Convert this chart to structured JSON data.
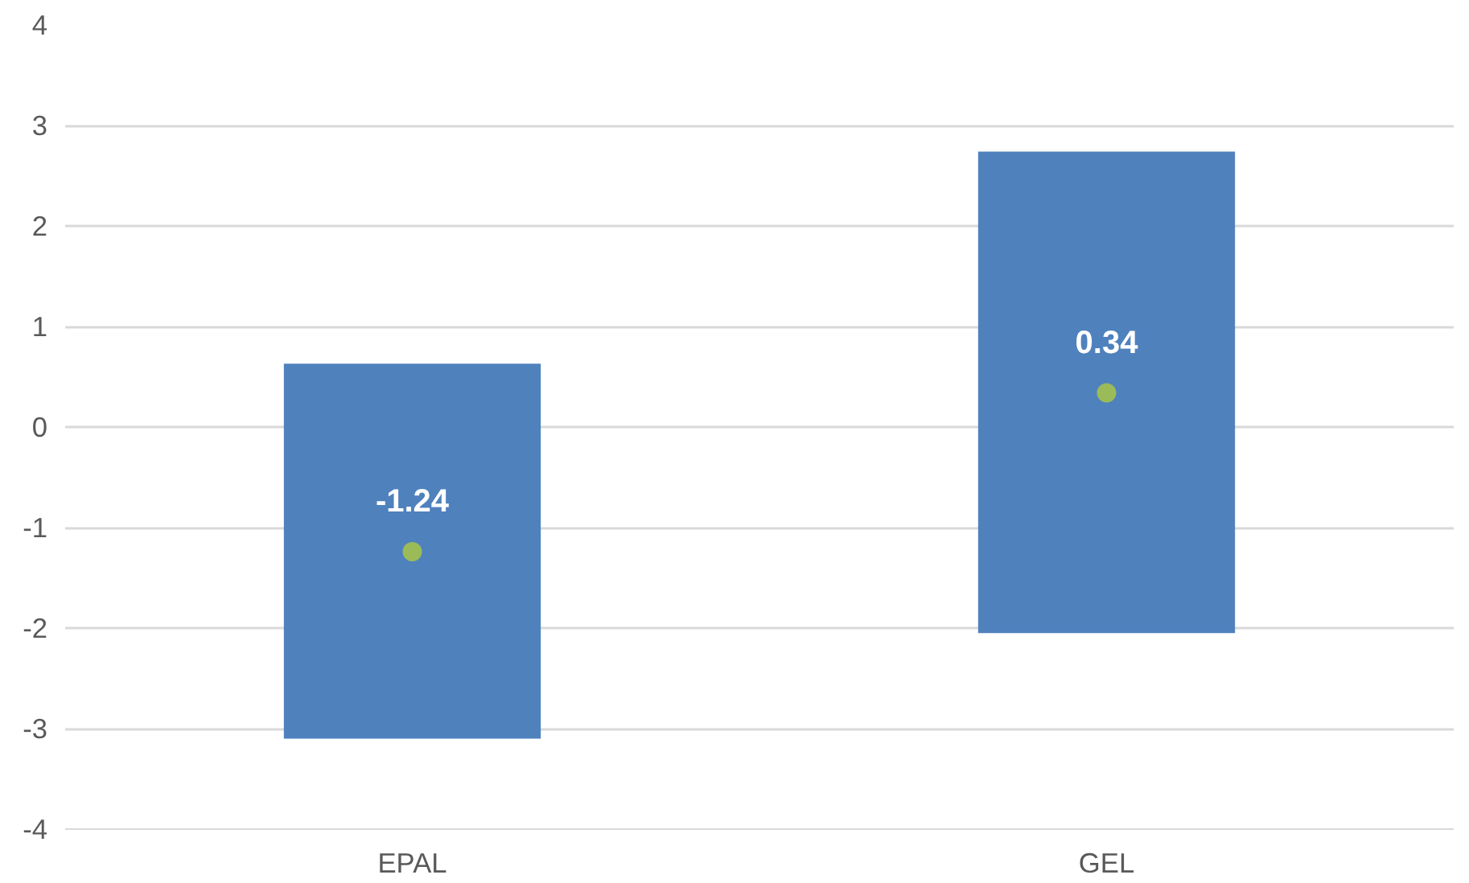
{
  "chart_data": {
    "type": "bar",
    "categories": [
      "EPAL",
      "GEL"
    ],
    "series": [
      {
        "color": "#4f81bd",
        "base": [
          -3.1,
          -2.05
        ],
        "values": [
          3.73,
          4.79
        ]
      },
      {
        "type": "scatter",
        "color": "#9bbb59",
        "values": [
          -1.24,
          0.34
        ],
        "value_labels": [
          "-1.24",
          "0.34"
        ],
        "marker": "circle"
      }
    ],
    "ylim": [
      -4,
      4
    ],
    "yticks": [
      -4,
      -3,
      -2,
      -1,
      0,
      1,
      2,
      3,
      4
    ],
    "grid": "y"
  }
}
